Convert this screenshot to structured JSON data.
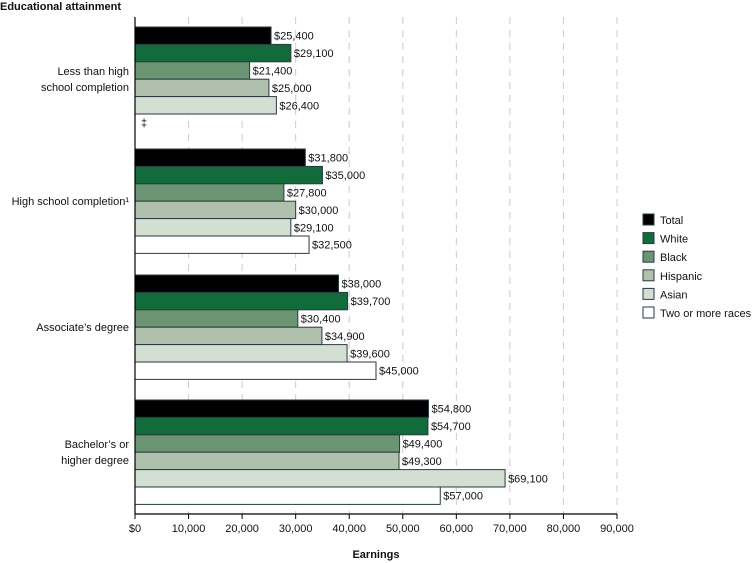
{
  "chart_data": {
    "type": "bar",
    "orientation": "horizontal",
    "title": "",
    "ylabel": "Educational attainment",
    "xlabel": "Earnings",
    "xlim": [
      0,
      90000
    ],
    "xticks": [
      0,
      10000,
      20000,
      30000,
      40000,
      50000,
      60000,
      70000,
      80000,
      90000
    ],
    "xtick_labels": [
      "$0",
      "10,000",
      "20,000",
      "30,000",
      "40,000",
      "50,000",
      "60,000",
      "70,000",
      "80,000",
      "90,000"
    ],
    "grid": "vertical-dashed",
    "legend_position": "right",
    "categories": [
      "Less than high\nschool completion",
      "High school completion¹",
      "Associate’s degree",
      "Bachelor’s or\nhigher degree"
    ],
    "series": [
      {
        "name": "Total",
        "color": "#000000",
        "values": [
          25400,
          31800,
          38000,
          54800
        ],
        "labels": [
          "$25,400",
          "$31,800",
          "$38,000",
          "$54,800"
        ]
      },
      {
        "name": "White",
        "color": "#126b3a",
        "values": [
          29100,
          35000,
          39700,
          54700
        ],
        "labels": [
          "$29,100",
          "$35,000",
          "$39,700",
          "$54,700"
        ]
      },
      {
        "name": "Black",
        "color": "#6b9473",
        "values": [
          21400,
          27800,
          30400,
          49400
        ],
        "labels": [
          "$21,400",
          "$27,800",
          "$30,400",
          "$49,400"
        ]
      },
      {
        "name": "Hispanic",
        "color": "#afc1ac",
        "values": [
          25000,
          30000,
          34900,
          49300
        ],
        "labels": [
          "$25,000",
          "$30,000",
          "$34,900",
          "$49,300"
        ]
      },
      {
        "name": "Asian",
        "color": "#d4dfd3",
        "values": [
          26400,
          29100,
          39600,
          69100
        ],
        "labels": [
          "$26,400",
          "$29,100",
          "$39,600",
          "$69,100"
        ]
      },
      {
        "name": "Two or more races",
        "color": "#ffffff",
        "values": [
          null,
          32500,
          45000,
          57000
        ],
        "labels": [
          "‡",
          "$32,500",
          "$45,000",
          "$57,000"
        ]
      }
    ]
  }
}
